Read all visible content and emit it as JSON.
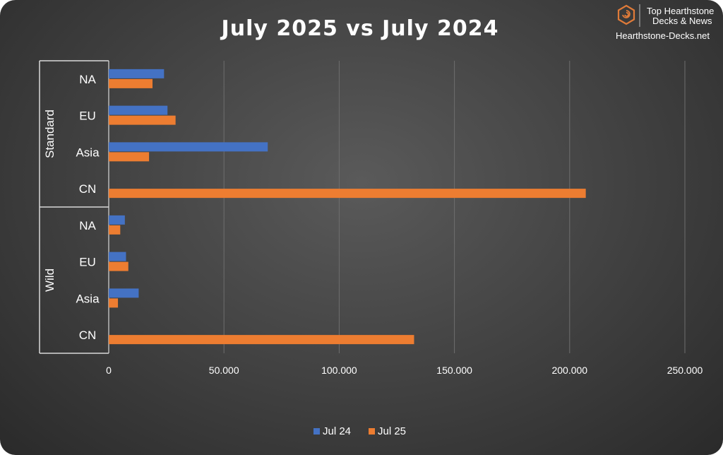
{
  "brand": {
    "line1": "Top Hearthstone",
    "line2": "Decks & News",
    "url": "Hearthstone-Decks.net",
    "icon": "hexagon-swirl-icon",
    "accent": "#e07b39"
  },
  "chart_data": {
    "type": "bar",
    "orientation": "horizontal",
    "title": "July 2025 vs July 2024",
    "groups": [
      {
        "name": "Standard",
        "categories": [
          "NA",
          "EU",
          "Asia",
          "CN"
        ]
      },
      {
        "name": "Wild",
        "categories": [
          "NA",
          "EU",
          "Asia",
          "CN"
        ]
      }
    ],
    "series": [
      {
        "name": "Jul 24",
        "color": "#4472c4",
        "values": [
          24000,
          25500,
          69000,
          0,
          7000,
          7500,
          13000,
          0
        ]
      },
      {
        "name": "Jul 25",
        "color": "#ed7d31",
        "values": [
          19000,
          29000,
          17500,
          207000,
          5000,
          8500,
          4000,
          132500
        ]
      }
    ],
    "xlim": [
      0,
      250000
    ],
    "xticks": [
      "0",
      "50.000",
      "100.000",
      "150.000",
      "200.000",
      "250.000"
    ],
    "grid": true,
    "legend_position": "bottom"
  }
}
